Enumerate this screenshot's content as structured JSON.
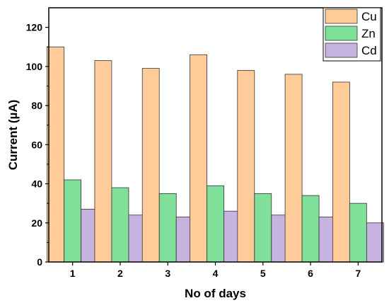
{
  "chart_data": {
    "type": "bar",
    "title": "",
    "xlabel": "No of days",
    "ylabel": "Current (µA)",
    "categories": [
      "1",
      "2",
      "3",
      "4",
      "5",
      "6",
      "7"
    ],
    "ylim": [
      0,
      130
    ],
    "yticks": [
      0,
      20,
      40,
      60,
      80,
      100,
      120
    ],
    "grid": false,
    "legend_position": "top-right",
    "series": [
      {
        "name": "Cu",
        "color": "#FFCC99",
        "values": [
          110,
          103,
          99,
          106,
          98,
          96,
          92
        ]
      },
      {
        "name": "Zn",
        "color": "#80DF99",
        "values": [
          42,
          38,
          35,
          39,
          35,
          34,
          30
        ]
      },
      {
        "name": "Cd",
        "color": "#C7B3DF",
        "values": [
          27,
          24,
          23,
          26,
          24,
          23,
          20
        ]
      }
    ]
  }
}
